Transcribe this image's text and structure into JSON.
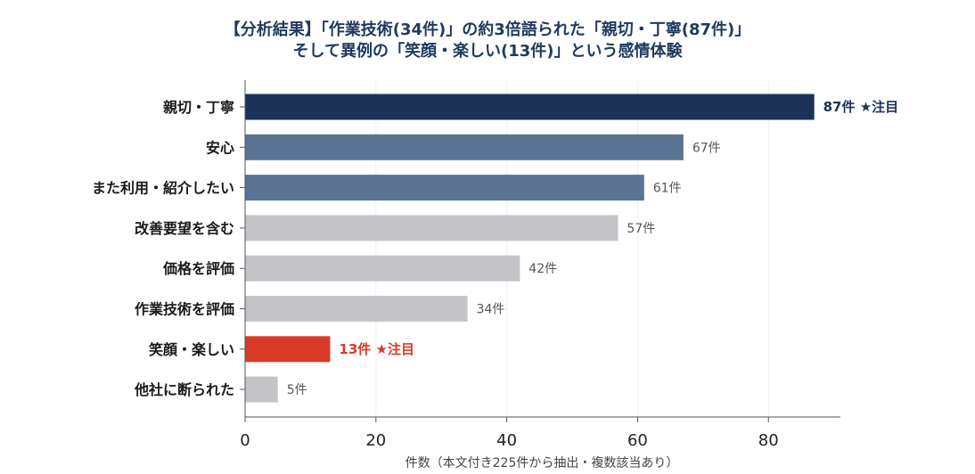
{
  "chart_data": {
    "type": "bar",
    "orientation": "horizontal",
    "title": "【分析結果】「作業技術(34件)」の約3倍語られた「親切・丁寧(87件)」",
    "subtitle": "そして異例の「笑顔・楽しい(13件)」という感情体験",
    "xlabel": "件数（本文付き225件から抽出・複数該当あり）",
    "ylabel": "",
    "xlim": [
      0,
      91
    ],
    "xticks": [
      0,
      20,
      40,
      60,
      80
    ],
    "categories": [
      "親切・丁寧",
      "安心",
      "また利用・紹介したい",
      "改善要望を含む",
      "価格を評価",
      "作業技術を評価",
      "笑顔・楽しい",
      "他社に断られた"
    ],
    "values": [
      87,
      67,
      61,
      57,
      42,
      34,
      13,
      5
    ],
    "value_labels": [
      "87件 ★注目",
      "67件",
      "61件",
      "57件",
      "42件",
      "34件",
      "13件 ★注目",
      "5件"
    ],
    "bar_colors": [
      "#1b3358",
      "#5b7393",
      "#5b7393",
      "#c4c4c8",
      "#c4c4c8",
      "#c4c4c8",
      "#d93a27",
      "#c4c4c8"
    ],
    "label_colors": [
      "#1b3358",
      "#555555",
      "#555555",
      "#555555",
      "#555555",
      "#555555",
      "#d93a27",
      "#555555"
    ],
    "highlighted": [
      true,
      false,
      false,
      false,
      false,
      false,
      true,
      false
    ],
    "grid": "vertical-light",
    "legend": "none"
  }
}
